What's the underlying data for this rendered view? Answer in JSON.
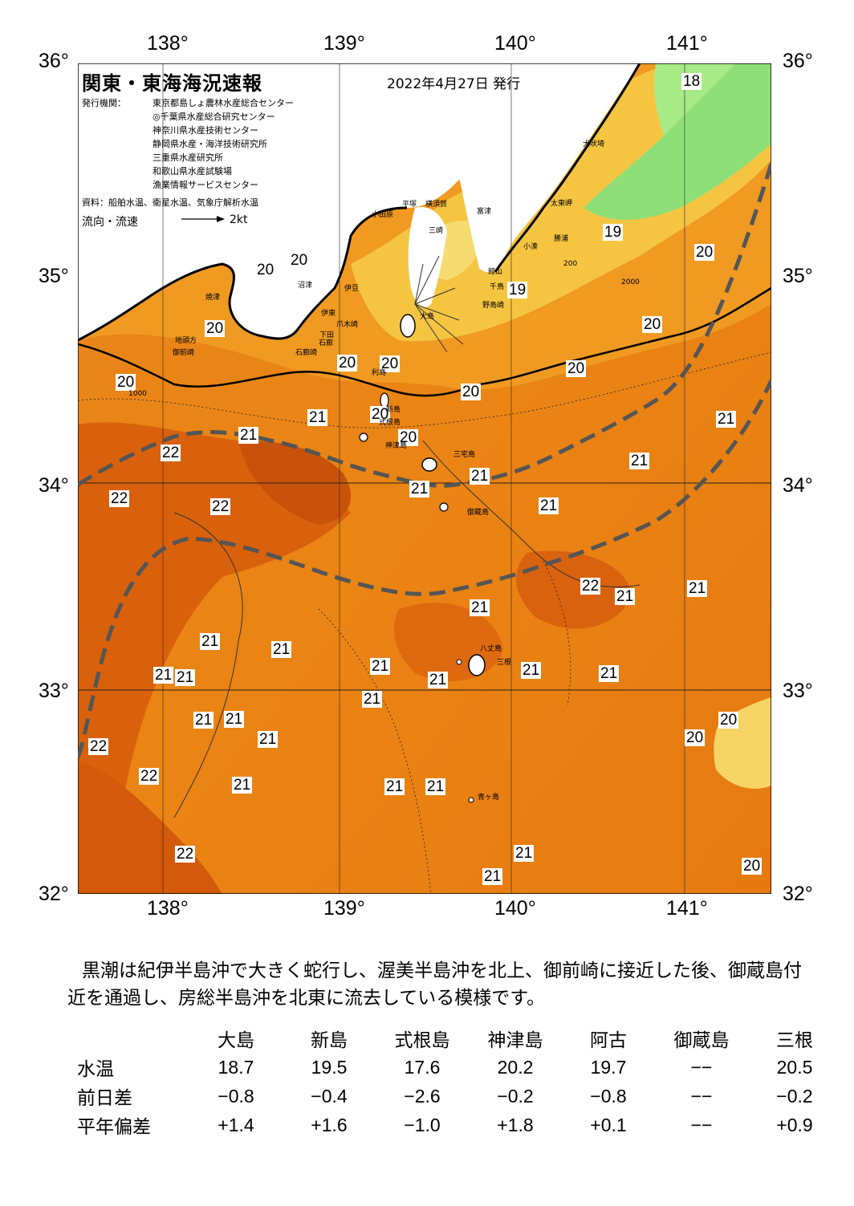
{
  "map": {
    "title": "関東・東海海況速報",
    "date": "2022年4月27日 発行",
    "issuer_label": "発行機関：",
    "issuers": [
      "東京都島しょ農林水産総合センター",
      "◎千葉県水産総合研究センター",
      "神奈川県水産技術センター",
      "静岡県水産・海洋技術研究所",
      "三重県水産研究所",
      "和歌山県水産試験場",
      "漁業情報サービスセンター"
    ],
    "source": "資料：船舶水温、衛星水温、気象庁解析水温",
    "flow_label": "流向・流速",
    "flow_unit": "2kt",
    "lon_ticks": [
      "138°",
      "139°",
      "140°",
      "141°"
    ],
    "lat_ticks": [
      "36°",
      "35°",
      "34°",
      "33°",
      "32°"
    ],
    "temperature_labels": [
      "18",
      "19",
      "19",
      "20",
      "20",
      "20",
      "20",
      "20",
      "20",
      "20",
      "20",
      "20",
      "20",
      "20",
      "20",
      "20",
      "20",
      "20",
      "21",
      "21",
      "21",
      "21",
      "21",
      "21",
      "21",
      "21",
      "21",
      "21",
      "21",
      "21",
      "21",
      "21",
      "21",
      "21",
      "21",
      "21",
      "21",
      "21",
      "21",
      "21",
      "21",
      "21",
      "21",
      "21",
      "21",
      "22",
      "22",
      "22",
      "22",
      "22",
      "22",
      "22"
    ],
    "place_names": [
      "犬吠埼",
      "太東岬",
      "勝浦",
      "小湊",
      "館山",
      "千鳥",
      "野島崎",
      "富津",
      "横須賀",
      "平塚",
      "小田原",
      "三崎",
      "伊豆",
      "沼津",
      "伊東",
      "下田",
      "石廊崎",
      "御前崎",
      "地頭方",
      "焼津",
      "石廊",
      "爪木崎",
      "利島",
      "新島",
      "式根島",
      "神津島",
      "三宅島",
      "御蔵島",
      "八丈島",
      "三根",
      "青ヶ島",
      "大島"
    ],
    "depth_contours": [
      "200",
      "1000",
      "2000"
    ],
    "colors": {
      "warm_22": "#d4580c",
      "orange_21": "#e87a12",
      "orange_20": "#f39a22",
      "yellow_19": "#f5c23f",
      "pale_19": "#f6dd70",
      "green_18": "#8fe07a",
      "land": "#ffffff",
      "kuroshio_axis": "#555555"
    }
  },
  "summary": "黒潮は紀伊半島沖で大きく蛇行し、渥美半島沖を北上、御前崎に接近した後、御蔵島付近を通過し、房総半島沖を北東に流去している模様です。",
  "table": {
    "columns": [
      "大島",
      "新島",
      "式根島",
      "神津島",
      "阿古",
      "御蔵島",
      "三根"
    ],
    "rows": [
      {
        "label": "水温",
        "values": [
          "18.7",
          "19.5",
          "17.6",
          "20.2",
          "19.7",
          "−−",
          "20.5"
        ]
      },
      {
        "label": "前日差",
        "values": [
          "−0.8",
          "−0.4",
          "−2.6",
          "−0.2",
          "−0.8",
          "−−",
          "−0.2"
        ]
      },
      {
        "label": "平年偏差",
        "values": [
          "+1.4",
          "+1.6",
          "−1.0",
          "+1.8",
          "+0.1",
          "−−",
          "+0.9"
        ]
      }
    ]
  }
}
